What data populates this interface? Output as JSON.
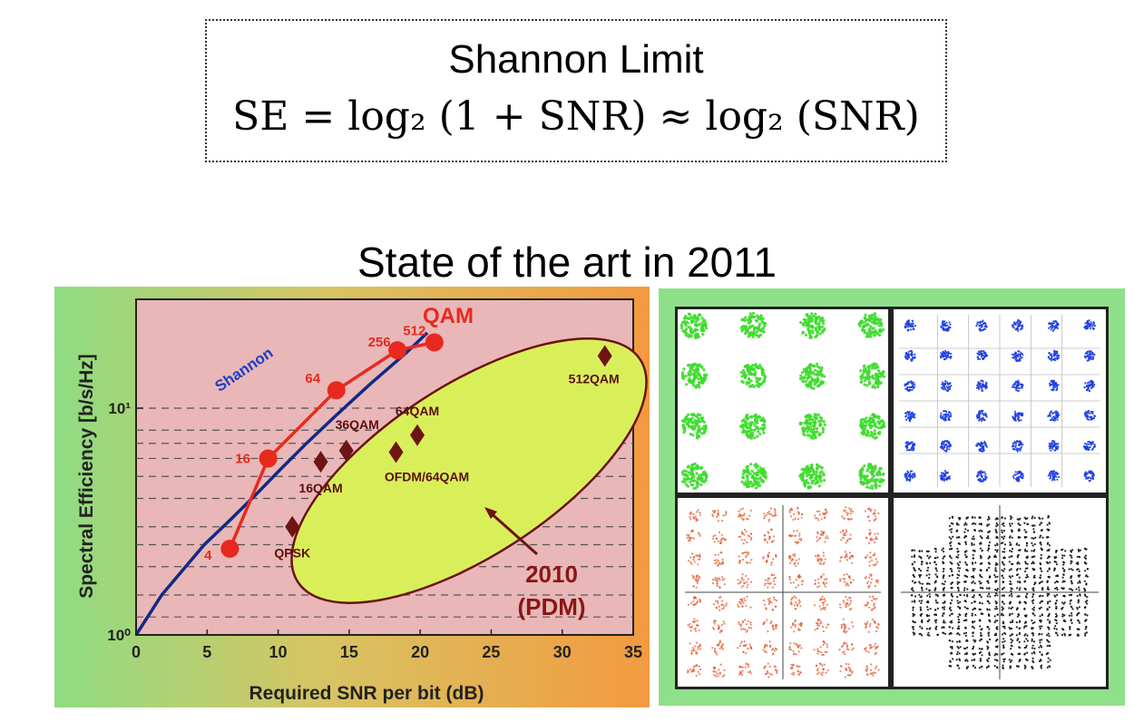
{
  "formula": {
    "title": "Shannon Limit",
    "equation": "SE = log₂ (1 + SNR) ≈ log₂ (SNR)"
  },
  "section_title": "State of the art in 2011",
  "chart_data": {
    "type": "scatter",
    "title": "",
    "xlabel": "Required SNR per bit (dB)",
    "ylabel": "Spectral Efficiency [b/s/Hz]",
    "xlim": [
      0,
      35
    ],
    "ylim": [
      1,
      30
    ],
    "yscale": "log",
    "xticks": [
      "0",
      "5",
      "10",
      "15",
      "20",
      "25",
      "30",
      "35"
    ],
    "yticks": [
      "10⁰",
      "10¹"
    ],
    "grid": "dashed horizontal lines",
    "background": {
      "plot": "#e9b7b7",
      "outer_left": "#8fdc82",
      "outer_right": "#f3a14a"
    },
    "series": [
      {
        "name": "Shannon",
        "kind": "curve",
        "color": "#0f2a86",
        "points": [
          [
            0,
            1.0
          ],
          [
            1.8,
            1.5
          ],
          [
            4.8,
            2.5
          ],
          [
            6.6,
            3.2
          ],
          [
            8.5,
            4.2
          ],
          [
            10.2,
            5.4
          ],
          [
            12,
            7.0
          ],
          [
            14,
            9.2
          ],
          [
            16.5,
            12.8
          ],
          [
            19,
            17.5
          ],
          [
            20.5,
            21.5
          ]
        ]
      },
      {
        "name": "QAM",
        "kind": "line-markers",
        "color": "#e8291f",
        "points": [
          [
            6.6,
            2.4
          ],
          [
            9.3,
            6.0
          ],
          [
            14.1,
            12.0
          ],
          [
            18.4,
            18.0
          ],
          [
            21.0,
            19.5
          ]
        ],
        "labels": [
          "4",
          "16",
          "64",
          "256",
          "512"
        ]
      },
      {
        "name": "2010 (PDM)",
        "kind": "diamonds",
        "color": "#6e1414",
        "points": [
          [
            11,
            3.0
          ],
          [
            13,
            5.8
          ],
          [
            14.8,
            6.5
          ],
          [
            18.3,
            6.4
          ],
          [
            19.8,
            7.6
          ],
          [
            33,
            17.0
          ]
        ],
        "labels": [
          "QPSK",
          "16QAM",
          "36QAM",
          "OFDM/64QAM",
          "64QAM",
          "512QAM"
        ]
      }
    ],
    "annotations": [
      {
        "text": "QAM",
        "color": "#e8291f"
      },
      {
        "text": "Shannon",
        "color": "#1c3fc4"
      },
      {
        "text": "2010",
        "color": "#8a1616"
      },
      {
        "text": "(PDM)",
        "color": "#8a1616"
      }
    ],
    "highlight": {
      "shape": "ellipse",
      "fill": "#d9ef5a",
      "stroke": "#6b1212"
    }
  },
  "constellations": [
    {
      "name": "16QAM",
      "color": "#3ddc2c",
      "grid": 4
    },
    {
      "name": "36QAM",
      "color": "#1f3fe0",
      "grid": 6
    },
    {
      "name": "64QAM",
      "color": "#e0552c",
      "grid": 8
    },
    {
      "name": "512QAM",
      "color": "#111111",
      "grid": 24
    }
  ]
}
